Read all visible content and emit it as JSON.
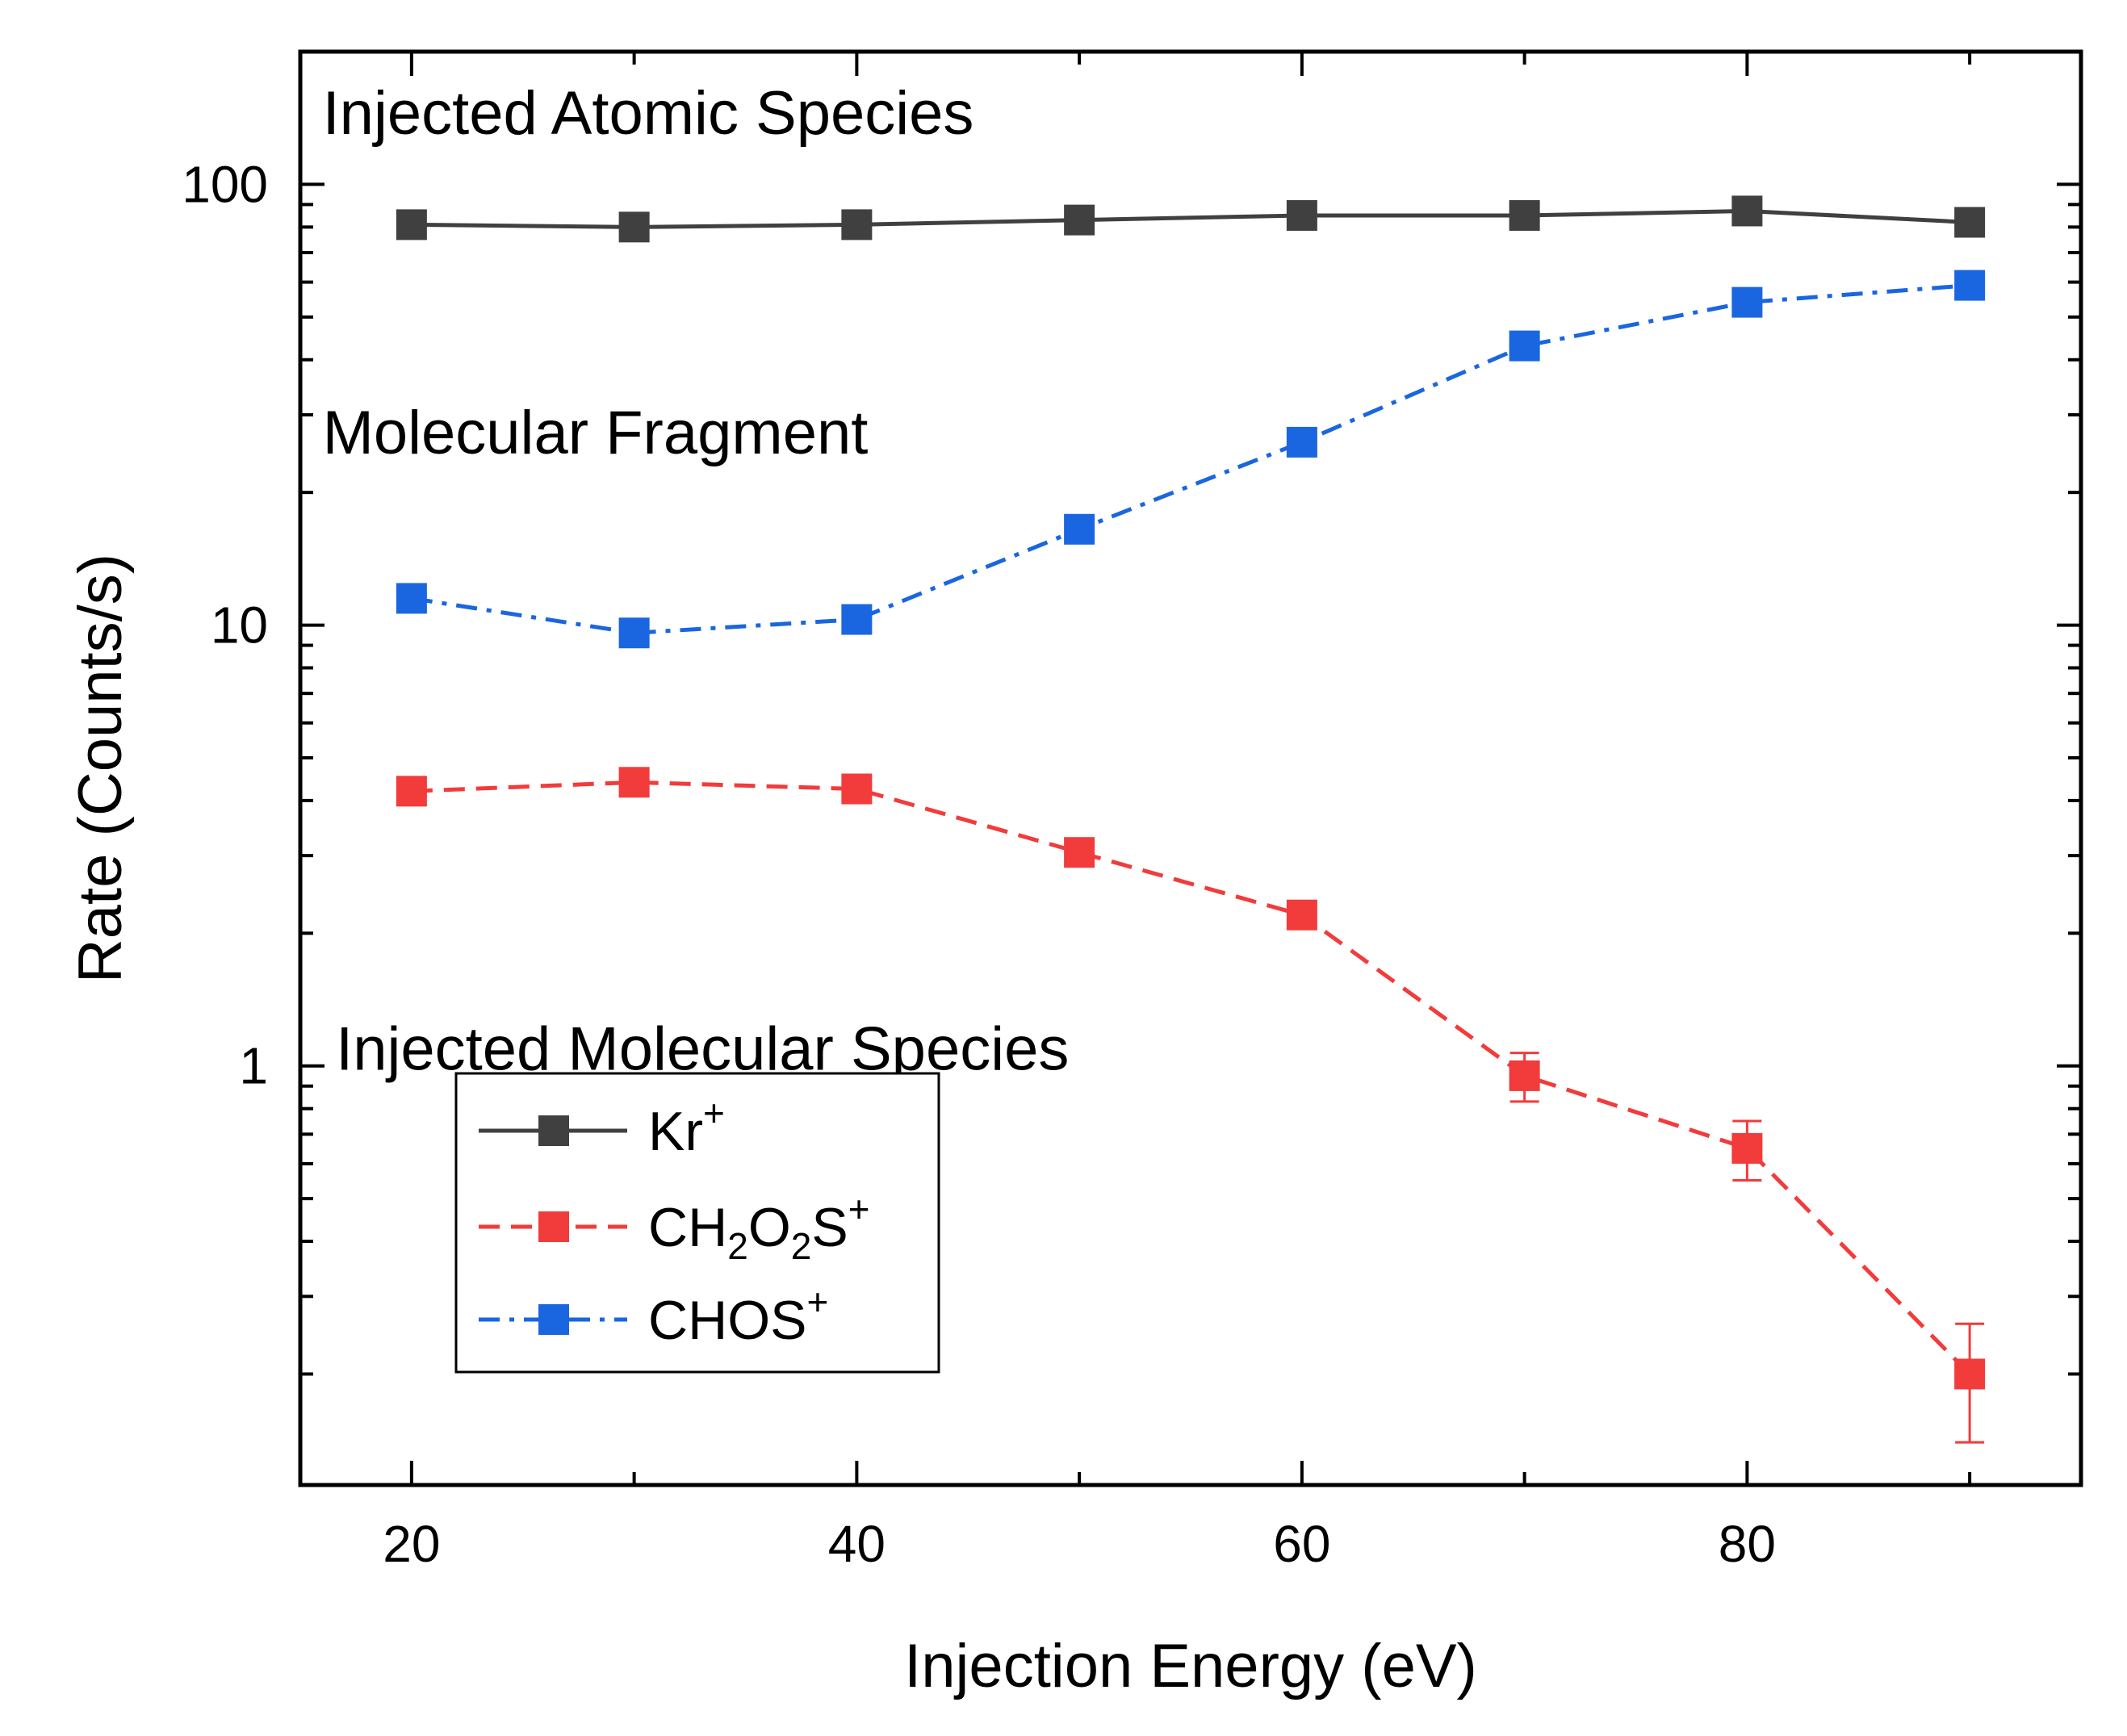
{
  "chart_data": {
    "type": "line",
    "scale_y": "log",
    "xlabel": "Injection Energy (eV)",
    "ylabel": "Rate (Counts/s)",
    "xlim": [
      15,
      95
    ],
    "ylim": [
      0.112,
      200
    ],
    "x_ticks": [
      20,
      40,
      60,
      80
    ],
    "x_tick_labels": [
      "20",
      "40",
      "60",
      "80"
    ],
    "y_ticks": [
      1,
      10,
      100
    ],
    "y_tick_labels": [
      "1",
      "10",
      "100"
    ],
    "x": [
      20,
      30,
      40,
      50,
      60,
      70,
      80,
      90
    ],
    "series": [
      {
        "name": "Kr⁺",
        "color": "#404040",
        "dash": "solid",
        "values": [
          81,
          80,
          81,
          83,
          85,
          85,
          87,
          82
        ],
        "errors": [
          1.5,
          1.5,
          1.5,
          1.5,
          1.5,
          1.5,
          2,
          1.5
        ]
      },
      {
        "name": "CH₂O₂S⁺",
        "color": "#f23b3b",
        "dash": "dash",
        "values": [
          4.2,
          4.4,
          4.25,
          3.05,
          2.2,
          0.95,
          0.65,
          0.2
        ],
        "errors": [
          0.1,
          0.1,
          0.1,
          0.1,
          0.18,
          0.12,
          0.1,
          0.06
        ]
      },
      {
        "name": "CHOS⁺",
        "color": "#1a66e0",
        "dash": "dashdot",
        "values": [
          11.5,
          9.6,
          10.3,
          16.5,
          26,
          43,
          54,
          59
        ],
        "errors": [
          0.2,
          0.2,
          0.2,
          0.3,
          0.5,
          0.8,
          1,
          1
        ]
      }
    ],
    "annotations": [
      {
        "text": "Injected Atomic Species",
        "x": 16,
        "y": 130
      },
      {
        "text": "Molecular Fragment",
        "x": 16,
        "y": 24.5
      },
      {
        "text": "Injected Molecular Species",
        "x": 16.6,
        "y": 0.98
      }
    ],
    "legend": {
      "position": "lower-left",
      "entries": [
        {
          "base": "Kr",
          "sub1": "",
          "mid": "",
          "sub2": "",
          "tail": "",
          "sup": "+"
        },
        {
          "base": "CH",
          "sub1": "2",
          "mid": "O",
          "sub2": "2",
          "tail": "S",
          "sup": "+"
        },
        {
          "base": "CHOS",
          "sub1": "",
          "mid": "",
          "sub2": "",
          "tail": "",
          "sup": "+"
        }
      ]
    }
  }
}
